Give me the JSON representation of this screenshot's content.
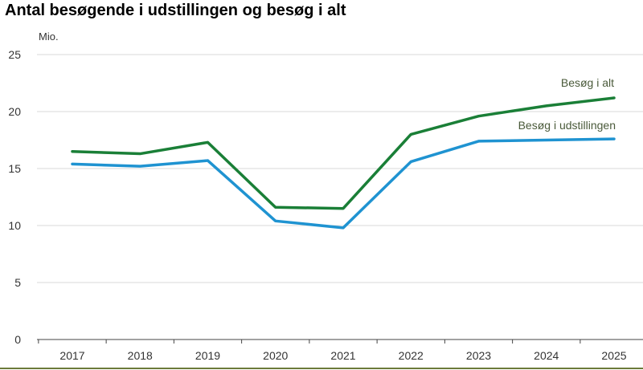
{
  "chart_data": {
    "type": "line",
    "title": "Antal besøgende i udstillingen og besøg i alt",
    "ylabel": "Mio.",
    "xlabel": "",
    "categories": [
      "2017",
      "2018",
      "2019",
      "2020",
      "2021",
      "2022",
      "2023",
      "2024",
      "2025"
    ],
    "ylim": [
      0,
      25
    ],
    "yticks": [
      0,
      5,
      10,
      15,
      20,
      25
    ],
    "grid": true,
    "legend": "inline labels at line ends",
    "series": [
      {
        "name": "Besøg i alt",
        "color": "#1a7f37",
        "values": [
          16.5,
          16.3,
          17.3,
          11.6,
          11.5,
          18.0,
          19.6,
          20.5,
          21.2
        ]
      },
      {
        "name": "Besøg i udstillingen",
        "color": "#1f93d1",
        "values": [
          15.4,
          15.2,
          15.7,
          10.4,
          9.8,
          15.6,
          17.4,
          17.5,
          17.6
        ]
      }
    ]
  }
}
